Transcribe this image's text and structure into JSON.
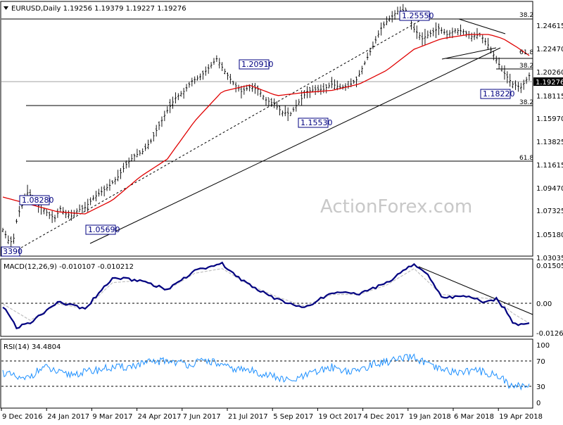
{
  "header": {
    "symbol_line": "EURUSD,Daily  1.19256 1.19379 1.19227 1.19276",
    "macd_line": "MACD(12,26,9) -0.010107 -0.010212",
    "rsi_line": "RSI(14) 34.4804"
  },
  "watermark": "ActionForex.com",
  "current_price_tag": "1.19276",
  "colors": {
    "ema_line": "#e00000",
    "price_bars": "#000000",
    "macd": "#000080",
    "macd_signal": "#c0c0c0",
    "rsi": "#1e90ff",
    "label_border": "#000080",
    "price_tag_bg": "#000000"
  },
  "chart_data": [
    {
      "type": "line",
      "title": "EURUSD,Daily",
      "ohlc_last": {
        "open": 1.19256,
        "high": 1.19379,
        "low": 1.19227,
        "close": 1.19276
      },
      "x_tick_labels": [
        "9 Dec 2016",
        "24 Jan 2017",
        "9 Mar 2017",
        "24 Apr 2017",
        "7 Jun 2017",
        "21 Jul 2017",
        "5 Sep 2017",
        "19 Oct 2017",
        "4 Dec 2017",
        "19 Jan 2018",
        "6 Mar 2018",
        "19 Apr 2018"
      ],
      "y_tick_labels": [
        "1.24615",
        "1.22470",
        "1.20260",
        "1.18115",
        "1.15970",
        "1.13825",
        "1.11615",
        "1.09470",
        "1.07325",
        "1.05180",
        "1.03035"
      ],
      "ylim": [
        1.022,
        1.262
      ],
      "series": [
        {
          "name": "Price",
          "x": [
            0,
            3,
            5,
            8,
            10,
            12,
            15,
            18,
            22,
            26,
            30,
            34,
            38,
            42,
            46,
            50,
            55,
            60,
            66,
            72,
            78,
            84,
            90,
            96,
            102,
            108,
            114,
            120,
            126,
            132,
            138,
            144,
            150,
            156,
            162,
            168,
            174,
            180,
            186,
            192,
            198,
            204,
            210,
            216,
            222,
            228,
            234,
            240,
            246,
            252,
            258,
            264,
            270,
            276,
            282,
            288,
            294,
            300,
            306,
            312,
            318,
            324,
            330,
            336,
            342,
            348,
            354,
            360,
            366,
            372,
            378,
            384
          ],
          "values": [
            1.047,
            1.04,
            1.034,
            1.039,
            1.055,
            1.064,
            1.073,
            1.082,
            1.078,
            1.07,
            1.066,
            1.061,
            1.058,
            1.067,
            1.062,
            1.06,
            1.066,
            1.068,
            1.077,
            1.083,
            1.089,
            1.097,
            1.109,
            1.117,
            1.121,
            1.131,
            1.146,
            1.16,
            1.172,
            1.178,
            1.188,
            1.192,
            1.2,
            1.209,
            1.197,
            1.186,
            1.178,
            1.182,
            1.18,
            1.17,
            1.166,
            1.158,
            1.157,
            1.168,
            1.178,
            1.18,
            1.18,
            1.185,
            1.182,
            1.183,
            1.189,
            1.205,
            1.221,
            1.238,
            1.247,
            1.254,
            1.255,
            1.237,
            1.228,
            1.233,
            1.238,
            1.232,
            1.236,
            1.235,
            1.23,
            1.232,
            1.222,
            1.208,
            1.195,
            1.185,
            1.182,
            1.193
          ]
        },
        {
          "name": "EMA",
          "x": [
            0,
            20,
            40,
            60,
            80,
            100,
            120,
            140,
            160,
            180,
            200,
            220,
            240,
            260,
            280,
            300,
            320,
            340,
            355,
            365,
            375,
            384
          ],
          "values": [
            1.078,
            1.071,
            1.064,
            1.062,
            1.075,
            1.097,
            1.114,
            1.15,
            1.178,
            1.184,
            1.174,
            1.177,
            1.179,
            1.185,
            1.198,
            1.218,
            1.228,
            1.232,
            1.232,
            1.228,
            1.22,
            1.212
          ]
        }
      ],
      "labeled_levels": [
        "1.25550",
        "1.20910",
        "1.18220",
        "1.15530",
        "1.08280",
        "1.05690",
        "3390"
      ],
      "fibonacci_labels": [
        "38.2",
        "61.8",
        "38.2",
        "38.2",
        "61.8"
      ]
    },
    {
      "type": "line",
      "title": "MACD(12,26,9)",
      "y_tick_labels": [
        "0.015057",
        "0.00",
        "-0.012607"
      ],
      "ylim": [
        -0.0155,
        0.0165
      ],
      "series": [
        {
          "name": "MACD",
          "x": [
            0,
            10,
            20,
            40,
            60,
            80,
            100,
            120,
            140,
            160,
            170,
            180,
            200,
            220,
            240,
            260,
            280,
            300,
            310,
            320,
            340,
            350,
            360,
            366,
            372,
            378,
            384
          ],
          "values": [
            -0.003,
            -0.012,
            -0.01,
            -0.001,
            -0.004,
            0.009,
            0.008,
            0.004,
            0.012,
            0.015,
            0.01,
            0.006,
            0.0,
            -0.004,
            0.003,
            0.002,
            0.007,
            0.015,
            0.01,
            0.001,
            0.001,
            -0.001,
            0.0,
            -0.004,
            -0.01,
            -0.011,
            -0.01
          ]
        },
        {
          "name": "Signal",
          "x": [
            0,
            20,
            40,
            60,
            80,
            100,
            120,
            140,
            160,
            180,
            200,
            220,
            240,
            260,
            280,
            300,
            320,
            340,
            360,
            372,
            384
          ],
          "values": [
            -0.002,
            -0.009,
            -0.002,
            -0.004,
            0.007,
            0.008,
            0.004,
            0.011,
            0.013,
            0.006,
            0.001,
            -0.003,
            0.002,
            0.002,
            0.006,
            0.013,
            0.002,
            0.001,
            0.0,
            -0.006,
            -0.0102
          ]
        }
      ]
    },
    {
      "type": "line",
      "title": "RSI(14)",
      "y_tick_labels": [
        "100",
        "70",
        "30",
        "0"
      ],
      "ylim": [
        0,
        100
      ],
      "series": [
        {
          "name": "RSI",
          "x": [
            0,
            15,
            30,
            45,
            60,
            75,
            90,
            105,
            120,
            135,
            150,
            165,
            180,
            195,
            210,
            225,
            240,
            255,
            270,
            285,
            300,
            315,
            330,
            345,
            360,
            366,
            372,
            378,
            384
          ],
          "values": [
            52,
            40,
            60,
            48,
            52,
            58,
            60,
            66,
            70,
            64,
            70,
            58,
            55,
            47,
            38,
            50,
            60,
            52,
            64,
            70,
            75,
            58,
            52,
            55,
            48,
            40,
            28,
            32,
            34.5
          ]
        }
      ]
    }
  ]
}
